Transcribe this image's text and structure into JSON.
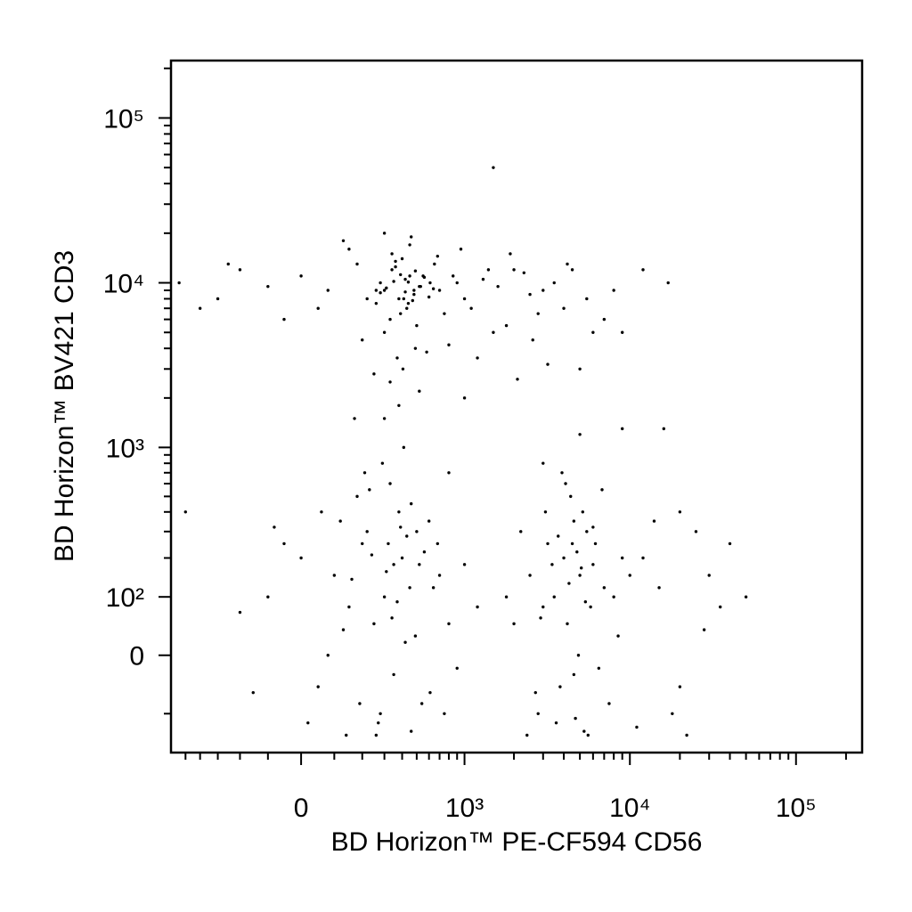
{
  "chart_data": {
    "type": "scatter",
    "x_label": "BD Horizon™ PE-CF594 CD56",
    "y_label": "BD Horizon™ BV421 CD3",
    "xscale": "asinh",
    "yscale": "asinh",
    "color": "#000000",
    "xlim": [
      -620,
      250000
    ],
    "ylim": [
      -200,
      223000
    ],
    "xticks": [
      0,
      {
        "value": 1000,
        "label": "10³"
      },
      {
        "value": 10000,
        "label": "10⁴"
      },
      {
        "value": 100000,
        "label": "10⁵"
      }
    ],
    "yticks": [
      0,
      {
        "value": 100,
        "label": "10²"
      },
      {
        "value": 1000,
        "label": "10³"
      },
      {
        "value": 10000,
        "label": "10⁴"
      },
      {
        "value": 100000,
        "label": "10⁵"
      }
    ],
    "xminorticks": [
      -500,
      -400,
      -300,
      -200,
      -100,
      100,
      200,
      300,
      400,
      500,
      600,
      700,
      800,
      900,
      2000,
      3000,
      4000,
      5000,
      6000,
      7000,
      8000,
      9000,
      20000,
      30000,
      40000,
      50000,
      60000,
      70000,
      80000,
      90000,
      200000
    ],
    "yminorticks": [
      -100,
      200,
      300,
      400,
      500,
      600,
      700,
      800,
      900,
      2000,
      3000,
      4000,
      5000,
      6000,
      7000,
      8000,
      9000,
      20000,
      30000,
      40000,
      50000,
      60000,
      70000,
      80000,
      90000,
      200000
    ],
    "x": [
      300,
      420,
      380,
      450,
      520,
      260,
      340,
      480,
      610,
      390,
      700,
      850,
      1000,
      1300,
      1600,
      2000,
      2500,
      3000,
      4000,
      5500,
      7000,
      9000,
      -100,
      0,
      50,
      180,
      220,
      280,
      330,
      360,
      400,
      440,
      480,
      500,
      550,
      650,
      750,
      900,
      1100,
      1400,
      1800,
      2300,
      2800,
      3500,
      4500,
      6000,
      -300,
      -200,
      -50,
      80,
      150,
      200,
      260,
      300,
      340,
      370,
      410,
      450,
      490,
      530,
      580,
      680,
      800,
      950,
      1200,
      1500,
      1900,
      2600,
      3200,
      4200,
      350,
      420,
      310,
      470,
      390,
      560,
      280,
      640,
      360,
      440,
      250,
      330,
      405,
      460,
      520,
      300,
      380,
      430,
      490,
      600,
      -400,
      -250,
      130,
      170,
      1000,
      2100,
      5000,
      8000,
      12000,
      17000,
      100,
      200,
      300,
      400,
      500,
      250,
      350,
      450,
      150,
      600,
      0,
      -100,
      50,
      700,
      800,
      320,
      380,
      280,
      420,
      220,
      180,
      260,
      340,
      460,
      540,
      120,
      80,
      -50,
      640,
      900,
      310,
      370,
      430,
      240,
      160,
      490,
      560,
      270,
      390,
      330,
      -200,
      -150,
      20,
      60,
      140,
      210,
      460,
      750,
      1000,
      1200,
      290,
      350,
      410,
      190,
      230,
      520,
      610,
      130,
      -80,
      680,
      4000,
      5000,
      4500,
      3500,
      6000,
      5500,
      3000,
      7000,
      4200,
      4800,
      2500,
      2000,
      8000,
      9000,
      3800,
      5200,
      4600,
      6500,
      3200,
      2800,
      4400,
      5800,
      3600,
      6200,
      4900,
      2200,
      7500,
      3400,
      5300,
      4100,
      1800,
      2400,
      3100,
      3900,
      4700,
      5600,
      6800,
      8500,
      10000,
      2700,
      4300,
      5100,
      3700,
      6000,
      2900,
      4600,
      5400,
      12000,
      15000,
      20000,
      25000,
      30000,
      35000,
      40000,
      18000,
      14000,
      22000,
      28000,
      50000,
      11000,
      1500,
      -500,
      16000,
      5000,
      300,
      3000,
      800,
      -550,
      9000,
      20000
    ],
    "values": [
      9000,
      10500,
      8000,
      11000,
      9500,
      7500,
      12000,
      8500,
      10000,
      6500,
      9000,
      11000,
      8000,
      10500,
      9500,
      12000,
      8500,
      9000,
      7000,
      8000,
      6000,
      5000,
      9500,
      11000,
      7000,
      13000,
      8000,
      10000,
      6000,
      12500,
      14000,
      7500,
      9000,
      5500,
      11000,
      13000,
      6500,
      10000,
      7000,
      12000,
      5500,
      11500,
      6500,
      10000,
      12000,
      5000,
      8000,
      12000,
      6000,
      9000,
      16000,
      4500,
      9000,
      5000,
      15000,
      3500,
      8000,
      17000,
      4000,
      9500,
      3800,
      14500,
      4200,
      16000,
      3500,
      5000,
      15000,
      4500,
      3200,
      13000,
      10200,
      8800,
      9300,
      7800,
      11200,
      10800,
      8700,
      9200,
      13500,
      10100,
      2800,
      2500,
      3000,
      19000,
      2200,
      20000,
      1800,
      7000,
      11800,
      8200,
      7000,
      13000,
      18000,
      1500,
      2000,
      2600,
      3000,
      9000,
      12000,
      10000,
      150,
      250,
      100,
      200,
      300,
      50,
      180,
      120,
      80,
      350,
      200,
      100,
      -50,
      150,
      50,
      250,
      400,
      -100,
      20,
      300,
      500,
      -150,
      60,
      450,
      -80,
      350,
      0,
      250,
      120,
      -20,
      160,
      90,
      280,
      210,
      140,
      30,
      220,
      -120,
      320,
      600,
      70,
      -60,
      -120,
      400,
      -150,
      700,
      -140,
      -100,
      180,
      80,
      800,
      -30,
      1000,
      -80,
      550,
      180,
      -60,
      40,
      320,
      250,
      200,
      150,
      250,
      100,
      180,
      300,
      80,
      120,
      50,
      220,
      150,
      50,
      100,
      200,
      -50,
      400,
      350,
      -20,
      250,
      -100,
      500,
      80,
      -120,
      250,
      0,
      300,
      -80,
      180,
      -140,
      600,
      100,
      -150,
      400,
      700,
      -110,
      -150,
      550,
      30,
      150,
      -60,
      130,
      170,
      280,
      320,
      60,
      -30,
      90,
      200,
      120,
      -50,
      300,
      150,
      80,
      250,
      -100,
      350,
      -150,
      40,
      100,
      -130,
      50000,
      400,
      1300,
      1200,
      1500,
      800,
      700,
      10000,
      1300,
      400
    ]
  }
}
